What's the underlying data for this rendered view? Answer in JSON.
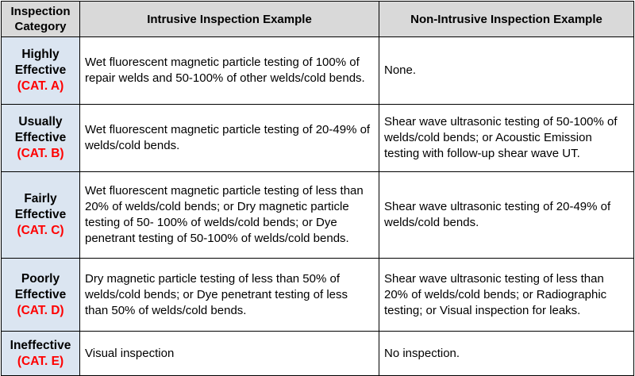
{
  "headers": {
    "category": "Inspection Category",
    "intrusive": "Intrusive Inspection Example",
    "non_intrusive": "Non-Intrusive Inspection Example"
  },
  "rows": [
    {
      "category_name": "Highly Effective",
      "category_code": "(CAT. A)",
      "intrusive": "Wet fluorescent magnetic particle testing of 100% of repair welds and 50-100% of other welds/cold bends.",
      "non_intrusive": "None."
    },
    {
      "category_name": "Usually Effective",
      "category_code": "(CAT. B)",
      "intrusive": "Wet fluorescent magnetic particle testing of 20-49% of welds/cold bends.",
      "non_intrusive": "Shear wave ultrasonic testing of 50-100% of welds/cold bends; or Acoustic Emission testing with follow-up shear wave UT."
    },
    {
      "category_name": "Fairly Effective",
      "category_code": "(CAT. C)",
      "intrusive": "Wet fluorescent magnetic particle testing of less than 20% of welds/cold bends; or Dry magnetic particle testing of 50- 100% of welds/cold bends; or Dye penetrant testing of 50-100% of welds/cold bends.",
      "non_intrusive": "Shear wave ultrasonic testing of 20-49% of welds/cold bends."
    },
    {
      "category_name": "Poorly Effective",
      "category_code": "(CAT. D)",
      "intrusive": "Dry magnetic particle testing of less than 50% of welds/cold bends; or Dye penetrant testing of less than 50% of welds/cold bends.",
      "non_intrusive": "Shear wave ultrasonic testing of less than 20% of welds/cold bends; or Radiographic testing; or Visual inspection for leaks."
    },
    {
      "category_name": "Ineffective",
      "category_code": "(CAT. E)",
      "intrusive": "Visual inspection",
      "non_intrusive": "No inspection."
    }
  ],
  "colors": {
    "header_bg": "#d9d9d9",
    "category_bg": "#dbe5f1",
    "category_code_text": "#ff0000",
    "border": "#000000"
  }
}
